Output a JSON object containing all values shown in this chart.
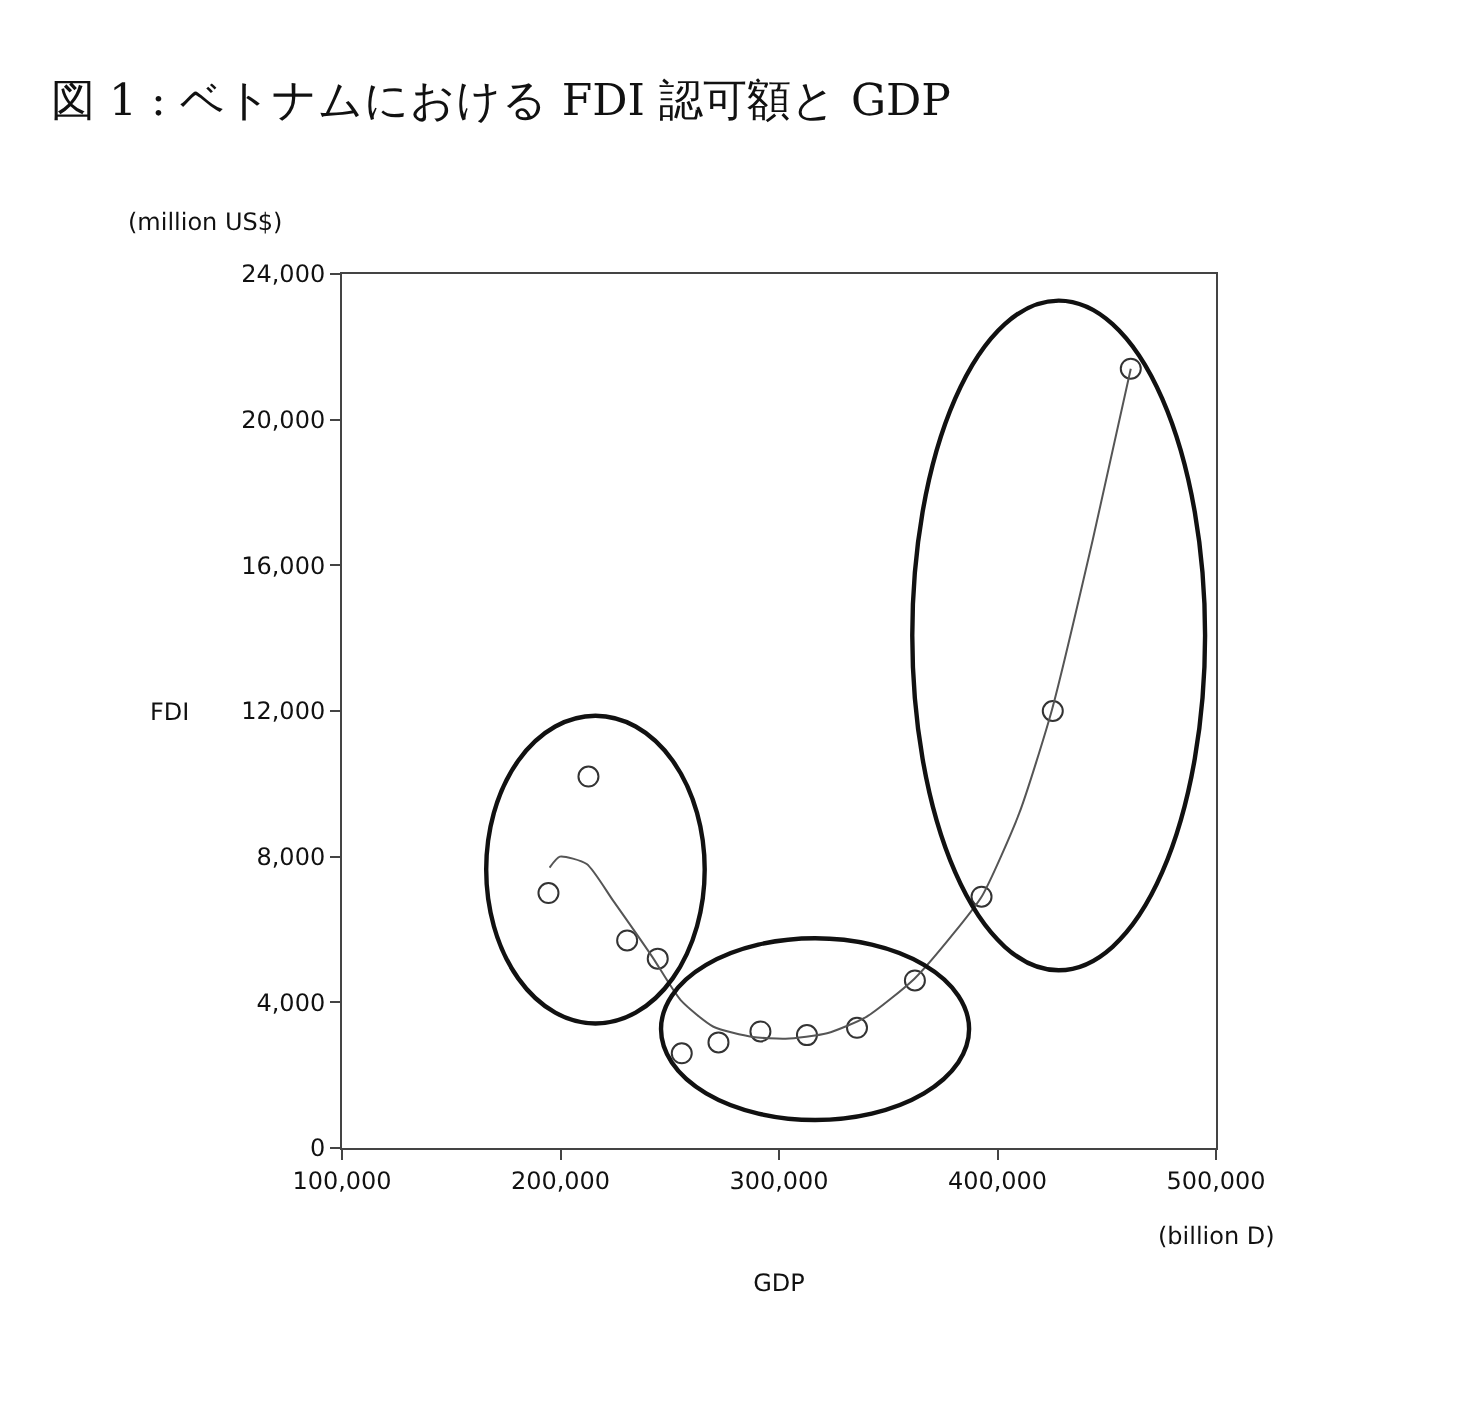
{
  "chart_data": {
    "type": "scatter",
    "title": "図 1 : ベトナムにおける FDI 認可額と GDP",
    "xlabel": "GDP",
    "ylabel": "FDI",
    "annotations": [
      "(million US$)",
      "(billion D)"
    ],
    "series": [
      {
        "color": "#333333",
        "marker": "circle",
        "x": [
          194500,
          212800,
          230500,
          244500,
          255500,
          272300,
          291500,
          312800,
          335700,
          362200,
          392700,
          425300,
          461000
        ],
        "values": [
          7000,
          10200,
          5700,
          5200,
          2600,
          2900,
          3200,
          3100,
          3300,
          4600,
          6900,
          12000,
          21400
        ]
      },
      {
        "type": "line",
        "color": "#555555",
        "marker": "none",
        "line_style": "solid",
        "x": [
          195000,
          199700,
          212000,
          224000,
          242000,
          255000,
          270000,
          288000,
          303000,
          322000,
          340000,
          362000,
          380000,
          393000,
          410000,
          425000,
          443600,
          461000
        ],
        "values": [
          7700,
          8000,
          7800,
          6800,
          5250,
          4060,
          3330,
          3050,
          3000,
          3150,
          3600,
          4650,
          5900,
          6930,
          9200,
          12050,
          16700,
          21400
        ]
      }
    ],
    "xlim": [
      100000,
      500000
    ],
    "xticks": [
      {
        "value": 100000,
        "label": "100,000"
      },
      {
        "value": 200000,
        "label": "200,000"
      },
      {
        "value": 300000,
        "label": "300,000"
      },
      {
        "value": 400000,
        "label": "400,000"
      },
      {
        "value": 500000,
        "label": "500,000"
      }
    ],
    "ylim": [
      0,
      24000
    ],
    "yticks": [
      0,
      {
        "value": 4000,
        "label": "4,000"
      },
      {
        "value": 8000,
        "label": "8,000"
      },
      {
        "value": 12000,
        "label": "12,000"
      },
      {
        "value": 16000,
        "label": "16,000"
      },
      {
        "value": 20000,
        "label": "20,000"
      },
      {
        "value": 24000,
        "label": "24,000"
      }
    ],
    "grid": false,
    "legend": false
  }
}
